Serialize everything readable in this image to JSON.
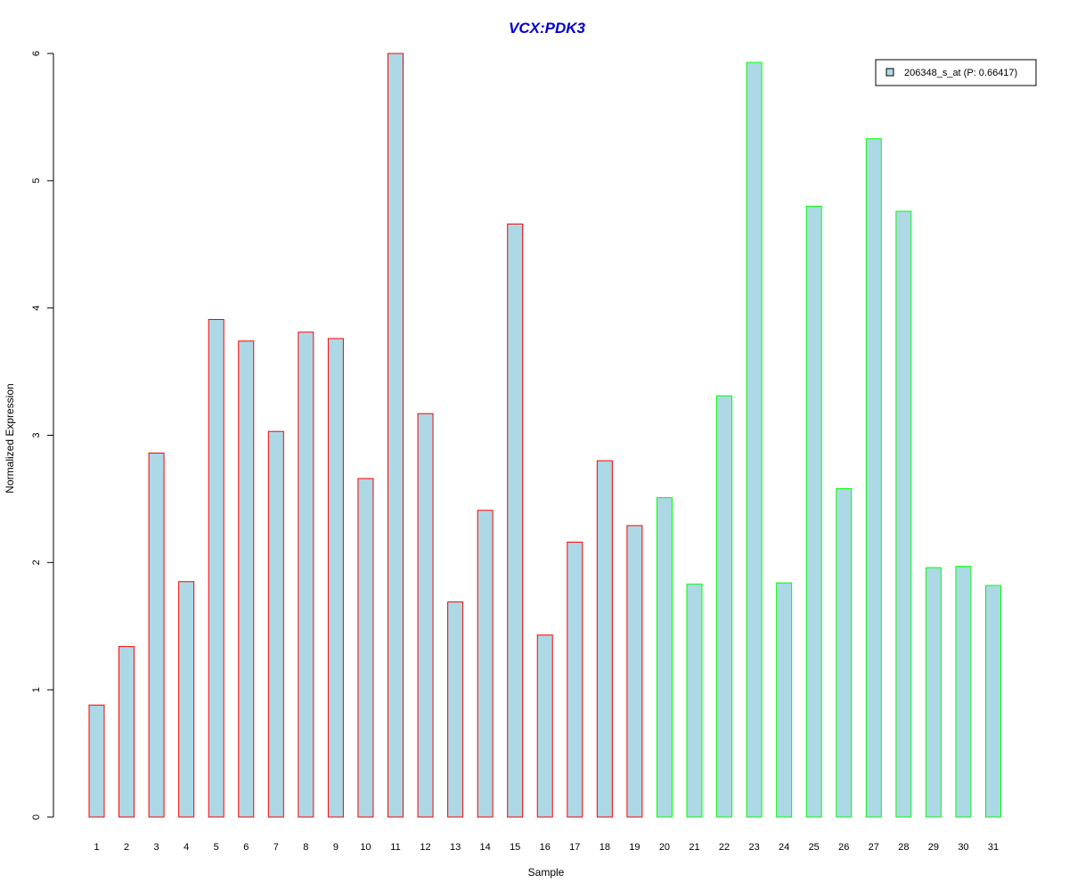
{
  "chart_data": {
    "type": "bar",
    "title": "VCX:PDK3",
    "xlabel": "Sample",
    "ylabel": "Normalized Expression",
    "ylim": [
      0,
      6
    ],
    "yticks": [
      "0",
      "1",
      "2",
      "3",
      "4",
      "5",
      "6"
    ],
    "categories": [
      "1",
      "2",
      "3",
      "4",
      "5",
      "6",
      "7",
      "8",
      "9",
      "10",
      "11",
      "12",
      "13",
      "14",
      "15",
      "16",
      "17",
      "18",
      "19",
      "20",
      "21",
      "22",
      "23",
      "24",
      "25",
      "26",
      "27",
      "28",
      "29",
      "30",
      "31"
    ],
    "series": [
      {
        "name": "206348_s_at (P: 0.66417)",
        "values": [
          0.88,
          1.34,
          2.86,
          1.85,
          3.91,
          3.74,
          3.03,
          3.81,
          3.76,
          2.66,
          6.0,
          3.17,
          1.69,
          2.41,
          4.66,
          1.43,
          2.16,
          2.8,
          2.29,
          2.51,
          1.83,
          3.31,
          5.93,
          1.84,
          4.8,
          2.58,
          5.33,
          4.76,
          1.96,
          1.97,
          1.82
        ]
      }
    ],
    "groups": [
      "red",
      "red",
      "red",
      "red",
      "red",
      "red",
      "red",
      "red",
      "red",
      "red",
      "red",
      "red",
      "red",
      "red",
      "red",
      "red",
      "red",
      "red",
      "red",
      "green",
      "green",
      "green",
      "green",
      "green",
      "green",
      "green",
      "green",
      "green",
      "green",
      "green",
      "green"
    ],
    "legend_position": "top-right",
    "grid": false
  },
  "colors": {
    "bar_fill": "#ADD8E6",
    "group_red": "#FF0000",
    "group_green": "#00FF00",
    "title": "#0000CC",
    "axis": "#000000"
  },
  "legend": {
    "label": "206348_s_at (P: 0.66417)"
  }
}
